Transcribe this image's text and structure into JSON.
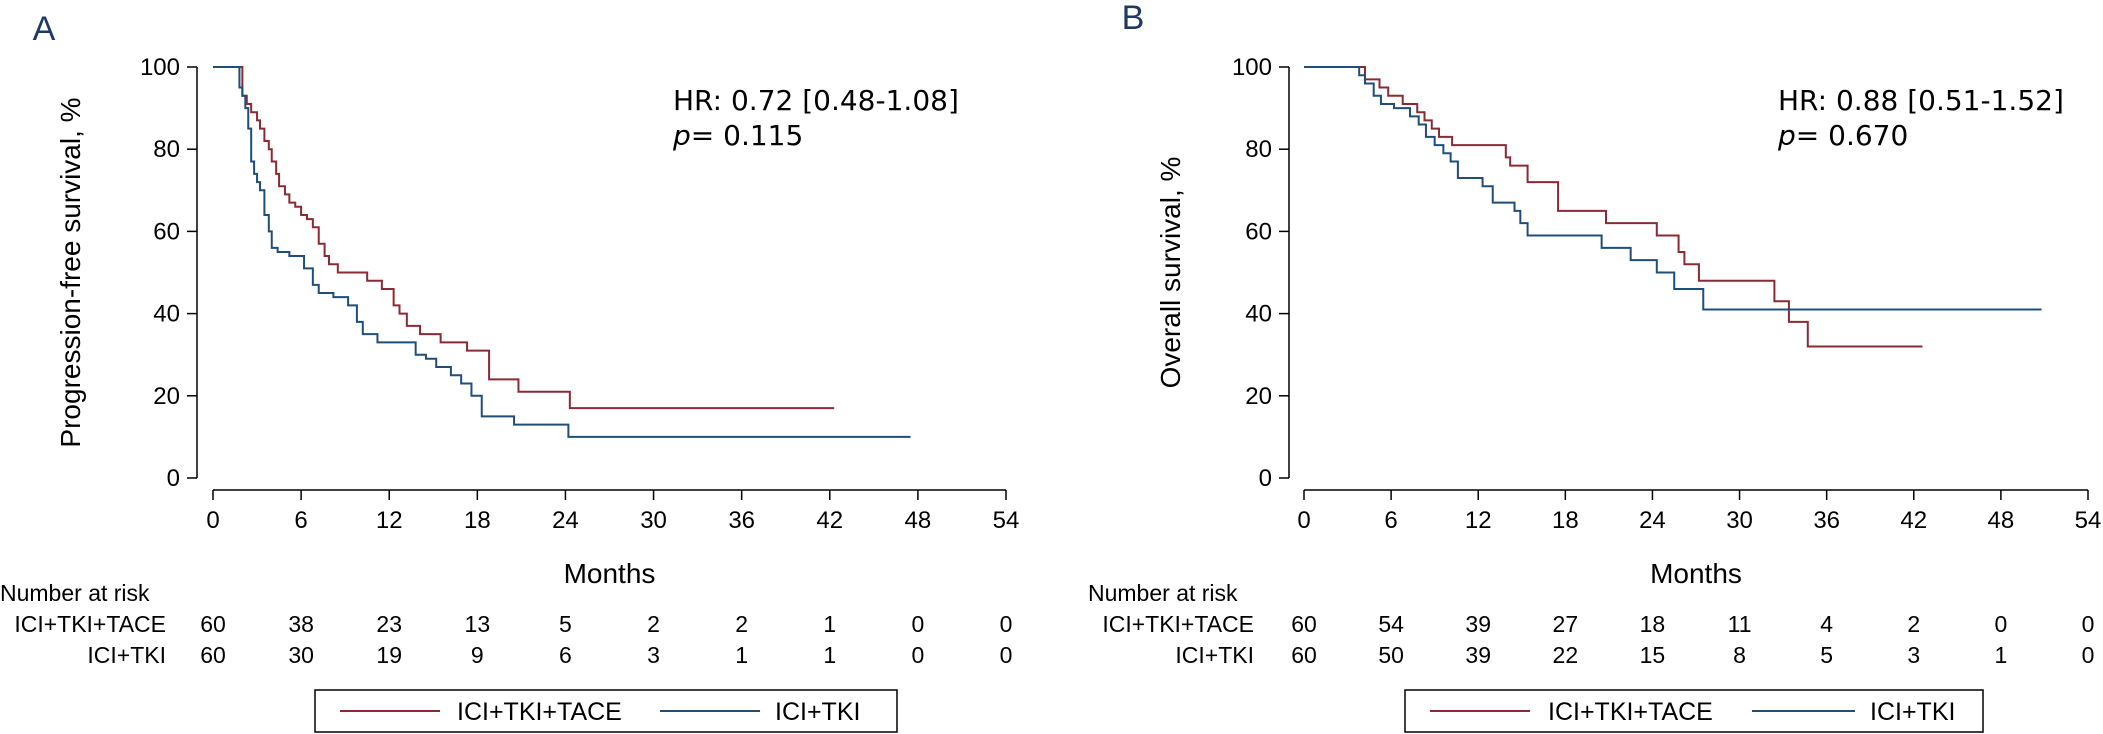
{
  "colors": {
    "series_a": "#8b2a35",
    "series_b": "#1f4e79",
    "axis": "#000000",
    "panel_letter": "#1f3864"
  },
  "chart_data": [
    {
      "type": "line",
      "panel": "A",
      "ylabel": "Progression-free survival, %",
      "xlabel": "Months",
      "xlim": [
        0,
        54
      ],
      "ylim": [
        0,
        100
      ],
      "x_ticks": [
        0,
        6,
        12,
        18,
        24,
        30,
        36,
        42,
        48,
        54
      ],
      "y_ticks": [
        0,
        20,
        40,
        60,
        80,
        100
      ],
      "hr_text": "HR: 0.72 [0.48-1.08]",
      "p_label": "p",
      "p_value": "= 0.115",
      "series": [
        {
          "name": "ICI+TKI+TACE",
          "x": [
            0,
            1.5,
            2.0,
            2.3,
            2.6,
            3.0,
            3.2,
            3.5,
            3.8,
            4.0,
            4.3,
            4.5,
            4.9,
            5.2,
            5.6,
            6.0,
            6.4,
            6.8,
            7.2,
            7.6,
            7.9,
            8.5,
            10.5,
            11.5,
            12.3,
            12.7,
            13.2,
            14.1,
            15.5,
            17.3,
            18.8,
            20.8,
            24.3,
            42.3
          ],
          "y": [
            100,
            100,
            93,
            91,
            89,
            87,
            85,
            82,
            80,
            77,
            74,
            71,
            69,
            67,
            66,
            64,
            63,
            61,
            57,
            54,
            52,
            50,
            48,
            46,
            42,
            40,
            37,
            35,
            33,
            31,
            24,
            21,
            17,
            17
          ]
        },
        {
          "name": "ICI+TKI",
          "x": [
            0,
            1.5,
            1.8,
            2.0,
            2.2,
            2.4,
            2.6,
            2.8,
            3.0,
            3.2,
            3.5,
            3.8,
            4.0,
            4.4,
            5.2,
            6.2,
            6.8,
            7.2,
            8.2,
            9.2,
            9.8,
            10.2,
            11.2,
            13.8,
            14.5,
            15.2,
            16.2,
            16.9,
            17.6,
            18.3,
            20.5,
            24.2,
            47.5
          ],
          "y": [
            100,
            100,
            95,
            93,
            90,
            85,
            77,
            74,
            72,
            70,
            64,
            60,
            56,
            55,
            54,
            51,
            47,
            45,
            44,
            42,
            38,
            35,
            33,
            30,
            29,
            27,
            25,
            23,
            20,
            15,
            13,
            10,
            10
          ]
        }
      ],
      "risk_table": {
        "heading": "Number at risk",
        "rows": [
          {
            "label": "ICI+TKI+TACE",
            "values": [
              "60",
              "38",
              "23",
              "13",
              "5",
              "2",
              "2",
              "1",
              "0",
              "0"
            ]
          },
          {
            "label": "ICI+TKI",
            "values": [
              "60",
              "30",
              "19",
              "9",
              "6",
              "3",
              "1",
              "1",
              "0",
              "0"
            ]
          }
        ]
      },
      "legend": [
        "ICI+TKI+TACE",
        "ICI+TKI"
      ]
    },
    {
      "type": "line",
      "panel": "B",
      "ylabel": "Overall survival, %",
      "xlabel": "Months",
      "xlim": [
        0,
        54
      ],
      "ylim": [
        0,
        100
      ],
      "x_ticks": [
        0,
        6,
        12,
        18,
        24,
        30,
        36,
        42,
        48,
        54
      ],
      "y_ticks": [
        0,
        20,
        40,
        60,
        80,
        100
      ],
      "hr_text": "HR: 0.88 [0.51-1.52]",
      "p_label": "p",
      "p_value": "= 0.670",
      "series": [
        {
          "name": "ICI+TKI+TACE",
          "x": [
            0,
            4.2,
            5.2,
            5.8,
            6.8,
            7.8,
            8.3,
            8.8,
            9.3,
            10.2,
            13.9,
            14.2,
            15.4,
            17.5,
            20.8,
            24.3,
            25.8,
            26.2,
            27.2,
            32.4,
            33.4,
            34.7,
            42.6
          ],
          "y": [
            100,
            97,
            95,
            93,
            91,
            89,
            87,
            85,
            83,
            81,
            78,
            76,
            72,
            65,
            62,
            59,
            55,
            52,
            48,
            43,
            38,
            32,
            32
          ]
        },
        {
          "name": "ICI+TKI",
          "x": [
            0,
            3.8,
            4.2,
            4.8,
            5.3,
            6.2,
            7.3,
            7.9,
            8.4,
            9.0,
            9.6,
            10.1,
            10.6,
            12.3,
            13.0,
            14.5,
            14.9,
            15.4,
            20.5,
            22.5,
            24.3,
            25.5,
            27.5,
            50.8
          ],
          "y": [
            100,
            98,
            96,
            93,
            91,
            90,
            88,
            86,
            83,
            81,
            79,
            77,
            73,
            71,
            67,
            65,
            62,
            59,
            56,
            53,
            50,
            46,
            41,
            41
          ]
        }
      ],
      "risk_table": {
        "heading": "Number at risk",
        "rows": [
          {
            "label": "ICI+TKI+TACE",
            "values": [
              "60",
              "54",
              "39",
              "27",
              "18",
              "11",
              "4",
              "2",
              "0",
              "0"
            ]
          },
          {
            "label": "ICI+TKI",
            "values": [
              "60",
              "50",
              "39",
              "22",
              "15",
              "8",
              "5",
              "3",
              "1",
              "0"
            ]
          }
        ]
      },
      "legend": [
        "ICI+TKI+TACE",
        "ICI+TKI"
      ]
    }
  ]
}
